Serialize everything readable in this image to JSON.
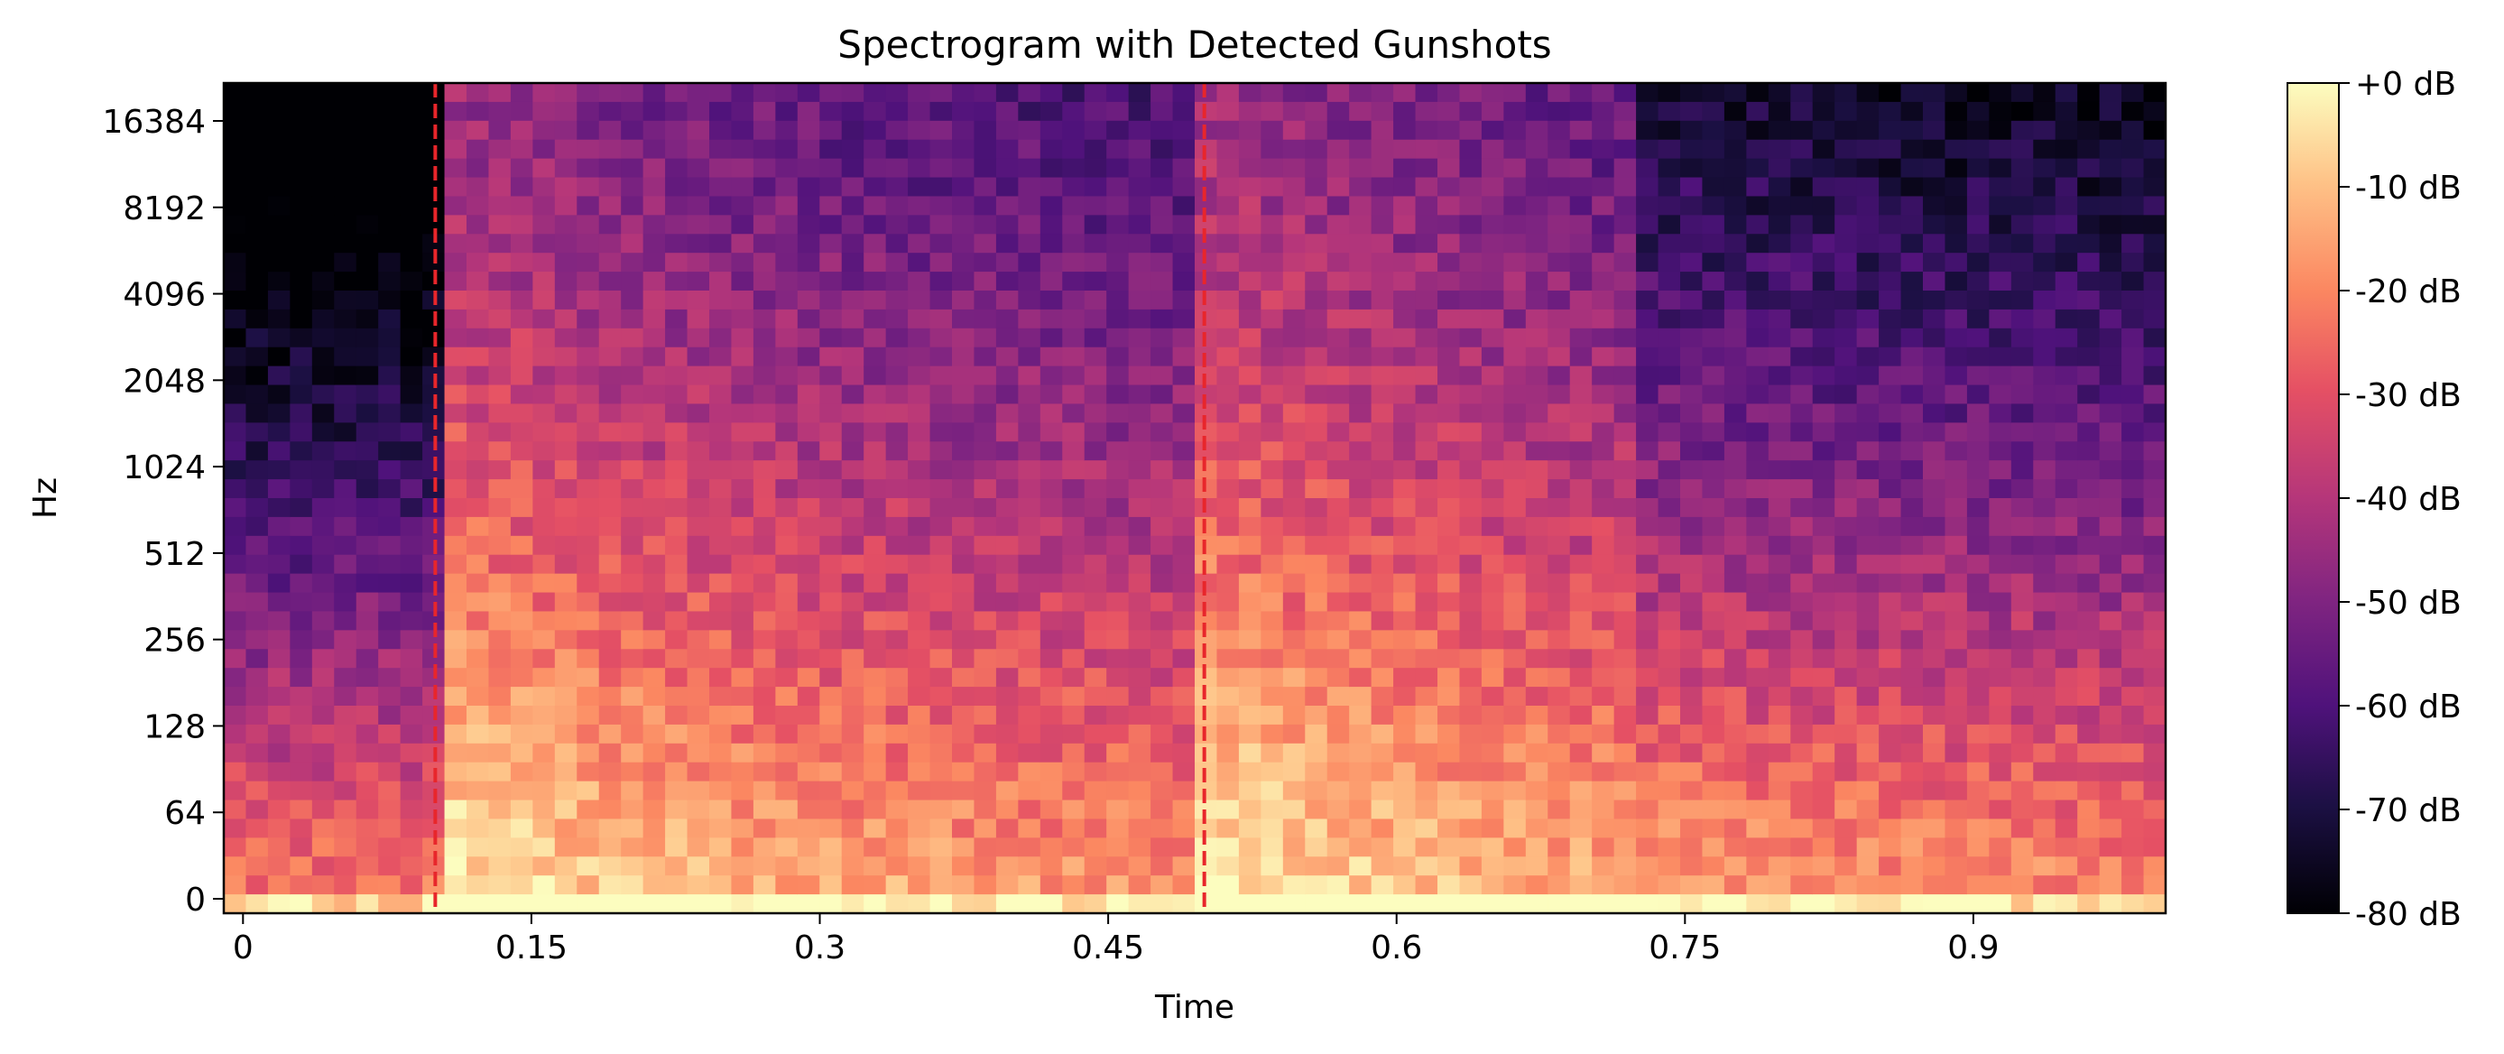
{
  "chart_data": {
    "type": "heatmap",
    "title": "Spectrogram with Detected Gunshots",
    "xlabel": "Time",
    "ylabel": "Hz",
    "xlim": [
      -0.01,
      1.0
    ],
    "x_ticks": [
      0,
      0.15,
      0.3,
      0.45,
      0.6,
      0.75,
      0.9
    ],
    "x_tick_labels": [
      "0",
      "0.15",
      "0.3",
      "0.45",
      "0.6",
      "0.75",
      "0.9"
    ],
    "y_scale": "symlog",
    "y_ticks": [
      0,
      64,
      128,
      256,
      512,
      1024,
      2048,
      4096,
      8192,
      16384
    ],
    "y_tick_labels": [
      "0",
      "64",
      "128",
      "256",
      "512",
      "1024",
      "2048",
      "4096",
      "8192",
      "16384"
    ],
    "colormap": "magma",
    "colorbar": {
      "range_db": [
        -80,
        0
      ],
      "ticks": [
        0,
        -10,
        -20,
        -30,
        -40,
        -50,
        -60,
        -70,
        -80
      ],
      "tick_labels": [
        "+0 dB",
        "-10 dB",
        "-20 dB",
        "-30 dB",
        "-40 dB",
        "-50 dB",
        "-60 dB",
        "-70 dB",
        "-80 dB"
      ]
    },
    "detections": {
      "times": [
        0.1,
        0.5
      ],
      "line_color": "#e8262b",
      "line_style": "dashed"
    },
    "grid": false
  }
}
